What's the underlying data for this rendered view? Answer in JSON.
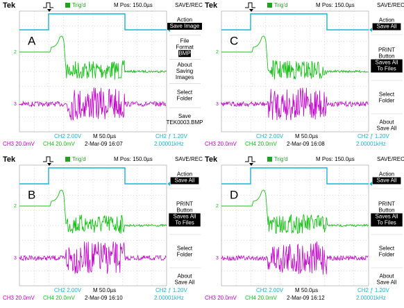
{
  "panels": [
    {
      "label": "A",
      "header": {
        "brand": "Tek",
        "trigger": "Trig'd",
        "mpos": "M Pos: 150.0µs",
        "mode": "SAVE/REC"
      },
      "markers": [
        "2",
        "3"
      ],
      "menu": [
        {
          "title": [
            "Action"
          ],
          "selected": [
            "Save Image"
          ]
        },
        {
          "title": [
            "File",
            "Format"
          ],
          "selected": [
            "BMP"
          ]
        },
        {
          "title": [
            "About",
            "Saving",
            "Images"
          ],
          "selected": []
        },
        {
          "title": [
            "Select",
            "Folder"
          ],
          "selected": []
        },
        {
          "title": [
            "Save",
            "TEK0003.BMP"
          ],
          "selected": []
        }
      ],
      "footer": {
        "ch2": "CH2  2.00V",
        "timebase": "M 50.0µs",
        "trigger_level": "CH2 ƒ 1.20V",
        "ch3": "CH3  20.0mV",
        "ch4": "CH4  20.0mV",
        "date": "2-Mar-09 16:07",
        "frequency": "2.00001kHz"
      }
    },
    {
      "label": "B",
      "header": {
        "brand": "Tek",
        "trigger": "Trig'd",
        "mpos": "M Pos: 150.0µs",
        "mode": "SAVE/REC"
      },
      "markers": [
        "2",
        "3"
      ],
      "menu": [
        {
          "title": [
            "Action"
          ],
          "selected": [
            "Save All"
          ]
        },
        {
          "title": [
            "PRINT",
            "Button"
          ],
          "selected": [
            "Saves All",
            "To Files"
          ]
        },
        {
          "title": [
            "Select",
            "Folder"
          ],
          "selected": []
        },
        {
          "title": [
            "About",
            "Save All"
          ],
          "selected": []
        }
      ],
      "footer": {
        "ch2": "CH2  2.00V",
        "timebase": "M 50.0µs",
        "trigger_level": "CH2 ƒ 1.20V",
        "ch3": "CH3  20.0mV",
        "ch4": "CH4  20.0mV",
        "date": "2-Mar-09 16:10",
        "frequency": "2.00001kHz"
      }
    },
    {
      "label": "C",
      "header": {
        "brand": "Tek",
        "trigger": "Trig'd",
        "mpos": "M Pos: 150.0µs",
        "mode": "SAVE/REC"
      },
      "markers": [
        "2",
        "3"
      ],
      "menu": [
        {
          "title": [
            "Action"
          ],
          "selected": [
            "Save All"
          ]
        },
        {
          "title": [
            "PRINT",
            "Button"
          ],
          "selected": [
            "Saves All",
            "To Files"
          ]
        },
        {
          "title": [
            "Select",
            "Folder"
          ],
          "selected": []
        },
        {
          "title": [
            "About",
            "Save All"
          ],
          "selected": []
        }
      ],
      "footer": {
        "ch2": "CH2  2.00V",
        "timebase": "M 50.0µs",
        "trigger_level": "CH2 ƒ 1.20V",
        "ch3": "CH3  20.0mV",
        "ch4": "CH4  20.0mV",
        "date": "2-Mar-09 16:08",
        "frequency": "2.00001kHz"
      }
    },
    {
      "label": "D",
      "header": {
        "brand": "Tek",
        "trigger": "Trig'd",
        "mpos": "M Pos: 150.0µs",
        "mode": "SAVE/REC"
      },
      "markers": [
        "2",
        "3"
      ],
      "menu": [
        {
          "title": [
            "Action"
          ],
          "selected": [
            "Save All"
          ]
        },
        {
          "title": [
            "PRINT",
            "Button"
          ],
          "selected": [
            "Saves All",
            "To Files"
          ]
        },
        {
          "title": [
            "Select",
            "Folder"
          ],
          "selected": []
        },
        {
          "title": [
            "About",
            "Save All"
          ],
          "selected": []
        }
      ],
      "footer": {
        "ch2": "CH2  2.00V",
        "timebase": "M 50.0µs",
        "trigger_level": "CH2 ƒ 1.20V",
        "ch3": "CH3  20.0mV",
        "ch4": "CH4  20.0mV",
        "date": "2-Mar-09 16:12",
        "frequency": "2.00001kHz"
      }
    }
  ]
}
